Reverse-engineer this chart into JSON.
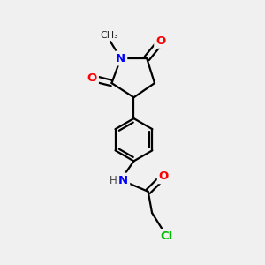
{
  "bg_color": "#f0f0f0",
  "bond_color": "#000000",
  "bond_width": 1.6,
  "atom_colors": {
    "O": "#ff0000",
    "N": "#0000ff",
    "Cl": "#00bb00",
    "C": "#000000",
    "H": "#444444"
  },
  "font_size_atom": 9.5,
  "font_size_small": 8.5
}
